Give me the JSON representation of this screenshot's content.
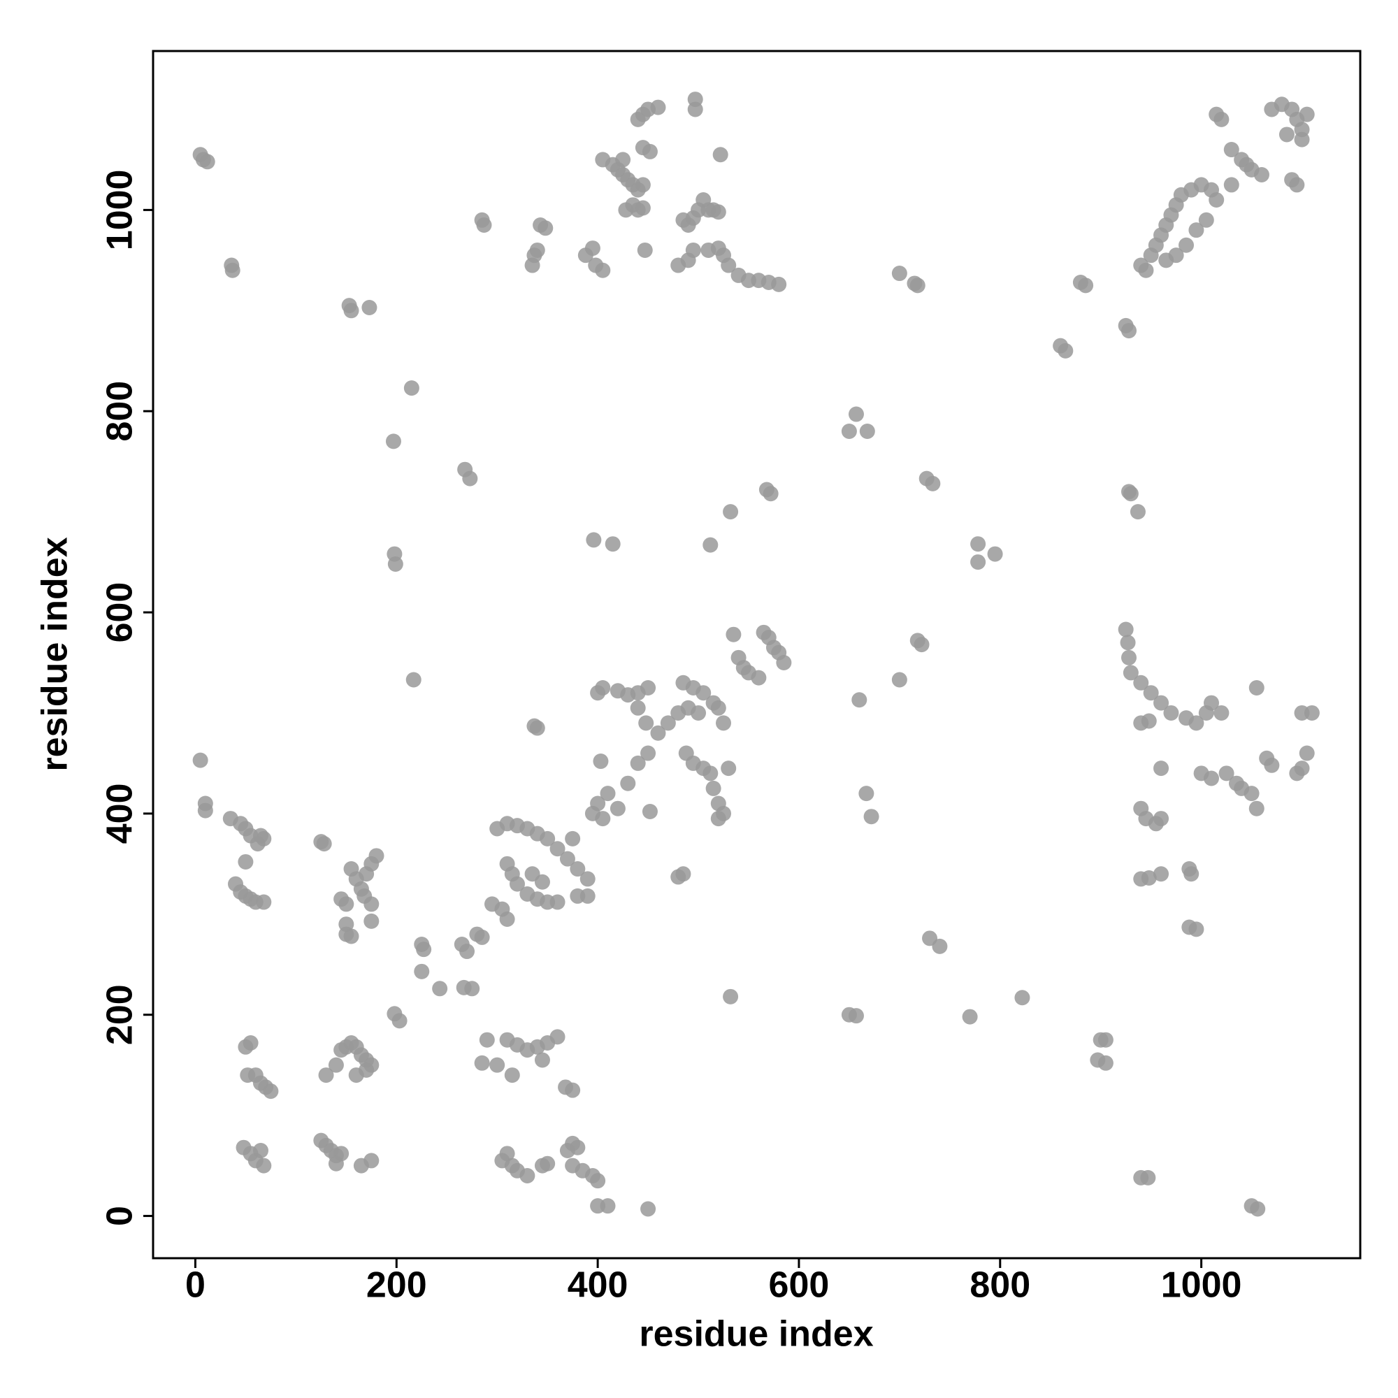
{
  "chart_data": {
    "type": "scatter",
    "x_label": "residue index",
    "y_label": "residue index",
    "color": "#999999",
    "xlim": [
      -42,
      1158
    ],
    "ylim": [
      -42,
      1158
    ],
    "xticks": [
      0,
      200,
      400,
      600,
      800,
      1000
    ],
    "yticks": [
      0,
      200,
      400,
      600,
      800,
      1000
    ],
    "x": [
      5,
      8,
      12,
      36,
      37,
      153,
      155,
      173,
      215,
      197,
      198,
      199,
      217,
      285,
      287,
      335,
      337,
      340,
      343,
      348,
      388,
      395,
      398,
      405,
      405,
      415,
      420,
      425,
      430,
      435,
      440,
      445,
      425,
      428,
      435,
      440,
      445,
      440,
      445,
      450,
      460,
      445,
      452,
      447,
      497,
      497,
      522,
      485,
      490,
      495,
      500,
      505,
      510,
      515,
      520,
      480,
      490,
      495,
      510,
      520,
      525,
      530,
      540,
      550,
      560,
      570,
      580,
      268,
      273,
      396,
      415,
      532,
      512,
      568,
      572,
      657,
      650,
      668,
      700,
      715,
      718,
      727,
      733,
      778,
      778,
      795,
      860,
      865,
      880,
      885,
      925,
      928,
      940,
      945,
      950,
      955,
      960,
      965,
      970,
      975,
      980,
      990,
      1000,
      1010,
      1015,
      1005,
      995,
      985,
      975,
      965,
      1015,
      1020,
      1030,
      1040,
      1050,
      1060,
      1070,
      1080,
      1090,
      1095,
      1100,
      1105,
      1100,
      1085,
      1090,
      1095,
      1030,
      1045,
      928,
      930,
      937,
      925,
      927,
      928,
      930,
      940,
      950,
      960,
      970,
      985,
      995,
      1005,
      1010,
      1020,
      940,
      948,
      960,
      1000,
      1010,
      1025,
      1035,
      1040,
      1050,
      1055,
      1055,
      1065,
      1070,
      1095,
      1100,
      1105,
      1110,
      1100,
      940,
      945,
      955,
      960,
      940,
      948,
      960,
      988,
      990,
      988,
      995,
      940,
      947,
      1050,
      1056,
      900,
      905,
      897,
      905,
      770,
      822,
      730,
      740,
      565,
      570,
      575,
      580,
      585,
      535,
      540,
      545,
      550,
      460,
      470,
      480,
      490,
      500,
      440,
      450,
      410,
      400,
      395,
      405,
      420,
      430,
      400,
      405,
      420,
      430,
      440,
      450,
      440,
      448,
      485,
      495,
      505,
      515,
      520,
      525,
      495,
      505,
      512,
      515,
      520,
      525,
      530,
      520,
      488,
      403,
      452,
      485,
      480,
      337,
      340,
      560,
      300,
      310,
      320,
      330,
      340,
      350,
      360,
      370,
      380,
      390,
      375,
      310,
      315,
      320,
      330,
      340,
      350,
      360,
      380,
      390,
      335,
      345,
      265,
      270,
      280,
      285,
      295,
      305,
      310,
      225,
      227,
      225,
      243,
      267,
      275,
      198,
      203,
      532,
      650,
      657,
      660,
      667,
      672,
      700,
      718,
      722,
      5,
      10,
      10,
      35,
      45,
      50,
      55,
      65,
      68,
      62,
      50,
      40,
      45,
      50,
      55,
      60,
      68,
      125,
      128,
      145,
      150,
      155,
      160,
      165,
      170,
      175,
      180,
      175,
      168,
      175,
      150,
      150,
      155,
      50,
      55,
      52,
      60,
      65,
      70,
      75,
      130,
      140,
      145,
      150,
      155,
      160,
      165,
      170,
      175,
      160,
      170,
      48,
      55,
      60,
      65,
      68,
      125,
      130,
      135,
      140,
      145,
      140,
      165,
      175,
      290,
      285,
      300,
      310,
      320,
      330,
      340,
      350,
      360,
      345,
      315,
      305,
      310,
      315,
      320,
      330,
      345,
      350,
      370,
      375,
      380,
      375,
      385,
      395,
      400,
      368,
      375,
      400,
      410,
      450
    ],
    "values": [
      1055,
      1050,
      1048,
      945,
      940,
      905,
      900,
      903,
      823,
      770,
      658,
      648,
      533,
      990,
      985,
      945,
      955,
      960,
      985,
      982,
      955,
      962,
      945,
      940,
      1050,
      1045,
      1040,
      1035,
      1030,
      1025,
      1020,
      1025,
      1050,
      1000,
      1005,
      1000,
      1002,
      1090,
      1095,
      1100,
      1102,
      1062,
      1058,
      960,
      1110,
      1100,
      1055,
      990,
      985,
      992,
      1000,
      1010,
      1000,
      1000,
      998,
      945,
      950,
      960,
      960,
      962,
      955,
      945,
      935,
      930,
      930,
      928,
      926,
      742,
      733,
      672,
      668,
      700,
      667,
      722,
      718,
      797,
      780,
      780,
      937,
      927,
      925,
      733,
      728,
      668,
      650,
      658,
      865,
      860,
      928,
      925,
      885,
      880,
      945,
      940,
      955,
      965,
      975,
      985,
      995,
      1005,
      1015,
      1020,
      1025,
      1020,
      1010,
      990,
      980,
      965,
      955,
      950,
      1095,
      1090,
      1060,
      1050,
      1040,
      1035,
      1100,
      1105,
      1100,
      1090,
      1080,
      1095,
      1070,
      1075,
      1030,
      1025,
      1025,
      1045,
      720,
      718,
      700,
      583,
      570,
      555,
      540,
      530,
      520,
      510,
      500,
      495,
      490,
      500,
      510,
      500,
      490,
      492,
      445,
      440,
      435,
      440,
      430,
      425,
      420,
      405,
      525,
      455,
      448,
      440,
      445,
      460,
      500,
      500,
      405,
      395,
      390,
      395,
      335,
      336,
      340,
      345,
      340,
      287,
      285,
      38,
      38,
      10,
      7,
      175,
      175,
      155,
      152,
      198,
      217,
      276,
      268,
      580,
      575,
      565,
      560,
      550,
      578,
      555,
      545,
      540,
      480,
      490,
      500,
      505,
      500,
      450,
      460,
      420,
      410,
      400,
      395,
      405,
      430,
      520,
      525,
      522,
      518,
      520,
      525,
      505,
      490,
      530,
      525,
      520,
      510,
      505,
      490,
      450,
      445,
      440,
      425,
      410,
      400,
      445,
      395,
      460,
      452,
      402,
      340,
      337,
      487,
      485,
      535,
      385,
      390,
      388,
      385,
      380,
      375,
      365,
      355,
      345,
      335,
      375,
      350,
      340,
      330,
      320,
      315,
      312,
      312,
      318,
      318,
      340,
      332,
      270,
      263,
      280,
      277,
      310,
      305,
      295,
      270,
      265,
      243,
      226,
      227,
      226,
      201,
      194,
      218,
      200,
      199,
      513,
      420,
      397,
      533,
      572,
      568,
      453,
      410,
      403,
      395,
      390,
      385,
      378,
      378,
      375,
      370,
      352,
      330,
      322,
      318,
      315,
      312,
      312,
      372,
      370,
      315,
      310,
      345,
      335,
      325,
      340,
      350,
      358,
      310,
      318,
      293,
      290,
      280,
      278,
      168,
      172,
      140,
      140,
      132,
      128,
      124,
      140,
      150,
      165,
      168,
      172,
      168,
      160,
      155,
      150,
      140,
      145,
      68,
      62,
      55,
      65,
      50,
      75,
      70,
      65,
      60,
      62,
      52,
      50,
      55,
      175,
      152,
      150,
      175,
      170,
      165,
      168,
      172,
      178,
      155,
      140,
      55,
      62,
      50,
      45,
      40,
      50,
      52,
      65,
      72,
      68,
      50,
      45,
      40,
      35,
      128,
      125,
      10,
      10,
      7
    ]
  }
}
